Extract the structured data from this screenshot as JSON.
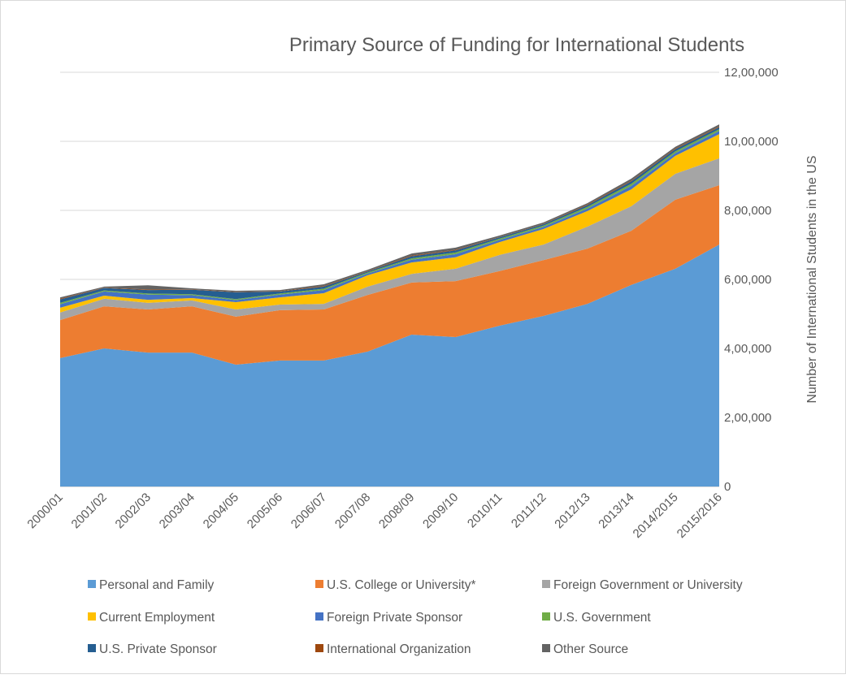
{
  "chart_data": {
    "type": "area",
    "stacked": true,
    "title": "Primary Source of Funding for International Students",
    "xlabel": "",
    "ylabel": "Number of International Students in the US",
    "ylim": [
      0,
      1200000
    ],
    "y_axis_position": "right",
    "yticks": [
      0,
      200000,
      400000,
      600000,
      800000,
      1000000,
      1200000
    ],
    "ytick_labels": [
      "0",
      "2,00,000",
      "4,00,000",
      "6,00,000",
      "8,00,000",
      "10,00,000",
      "12,00,000"
    ],
    "grid": true,
    "legend_position": "bottom",
    "categories": [
      "2000/01",
      "2001/02",
      "2002/03",
      "2003/04",
      "2004/05",
      "2005/06",
      "2006/07",
      "2007/08",
      "2008/09",
      "2009/10",
      "2010/11",
      "2011/12",
      "2012/13",
      "2013/14",
      "2014/2015",
      "2015/2016"
    ],
    "series": [
      {
        "name": "Personal and Family",
        "color": "#5b9bd5",
        "values": [
          372000,
          400000,
          388000,
          388000,
          353000,
          365000,
          365000,
          391000,
          440000,
          433000,
          466000,
          494000,
          529000,
          584000,
          631000,
          701000
        ]
      },
      {
        "name": "U.S. College or University*",
        "color": "#ed7d31",
        "values": [
          110000,
          122000,
          125000,
          134000,
          139000,
          146000,
          148000,
          164000,
          151000,
          162000,
          158000,
          162000,
          160000,
          157000,
          200000,
          172000
        ]
      },
      {
        "name": "Foreign Government or University",
        "color": "#a5a5a5",
        "values": [
          22000,
          22000,
          19000,
          17000,
          21000,
          16000,
          16000,
          24000,
          25000,
          36000,
          47000,
          45000,
          64000,
          71000,
          75000,
          78000
        ]
      },
      {
        "name": "Current Employment",
        "color": "#ffc000",
        "values": [
          14000,
          9000,
          9000,
          7000,
          21000,
          21000,
          31000,
          33000,
          33000,
          33000,
          37000,
          45000,
          45000,
          49000,
          52000,
          70000
        ]
      },
      {
        "name": "Foreign Private Sponsor",
        "color": "#4472c4",
        "values": [
          10000,
          12000,
          15000,
          8000,
          6000,
          8000,
          9000,
          5000,
          8000,
          9000,
          6000,
          6000,
          7000,
          10000,
          8000,
          9000
        ]
      },
      {
        "name": "U.S. Government",
        "color": "#70ad47",
        "values": [
          4000,
          3000,
          3000,
          3000,
          3000,
          3000,
          4000,
          3000,
          4000,
          5000,
          4000,
          4000,
          5000,
          6000,
          5000,
          5000
        ]
      },
      {
        "name": "U.S. Private Sponsor",
        "color": "#255e91",
        "values": [
          10000,
          7000,
          10000,
          13000,
          20000,
          6000,
          6000,
          3000,
          6000,
          6000,
          4000,
          4000,
          5000,
          7000,
          6000,
          6000
        ]
      },
      {
        "name": "International Organization",
        "color": "#9e480e",
        "values": [
          2000,
          1000,
          2000,
          1000,
          1000,
          1000,
          2000,
          1000,
          2000,
          2000,
          1000,
          1000,
          2000,
          2000,
          2000,
          2000
        ]
      },
      {
        "name": "Other Source",
        "color": "#636363",
        "values": [
          4000,
          3000,
          12000,
          3000,
          3000,
          3000,
          5000,
          4000,
          6000,
          6000,
          4000,
          4000,
          4000,
          6000,
          5000,
          6000
        ]
      }
    ]
  }
}
